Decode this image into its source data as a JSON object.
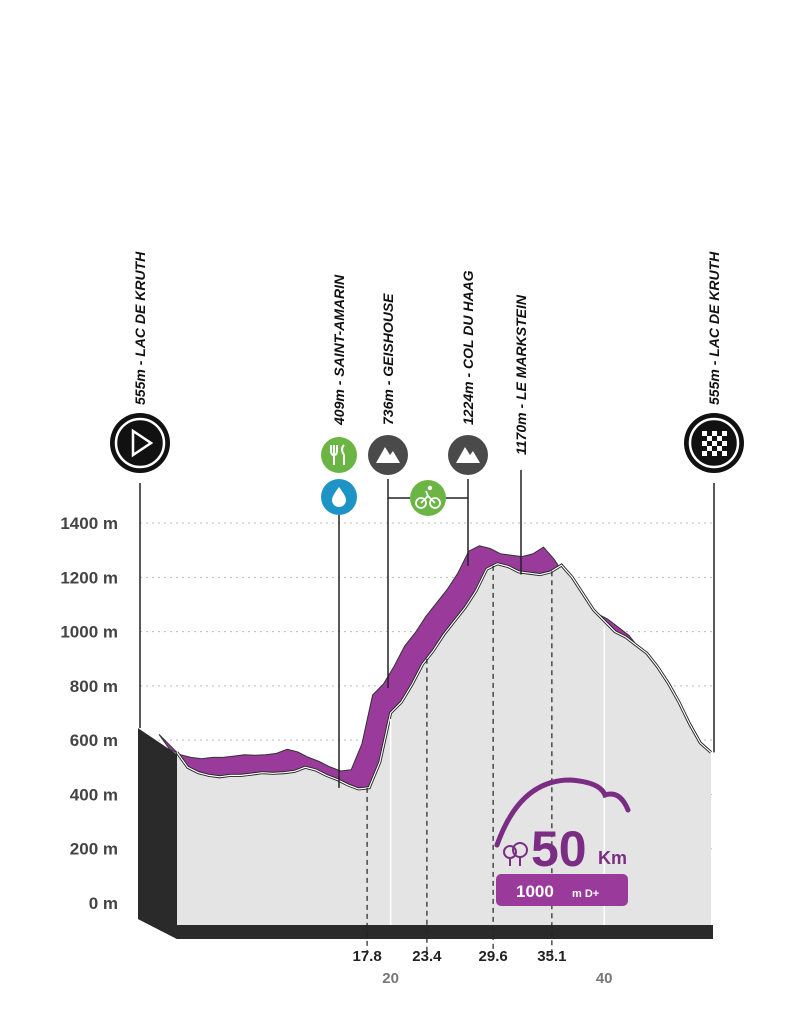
{
  "chart_data": {
    "type": "area",
    "y_unit_labels": [
      "0 m",
      "200 m",
      "400 m",
      "600 m",
      "800 m",
      "1000 m",
      "1200 m",
      "1400 m"
    ],
    "y_ticks": [
      0,
      200,
      400,
      600,
      800,
      1000,
      1200,
      1400
    ],
    "ylim": [
      0,
      1400
    ],
    "xlim": [
      0,
      50
    ],
    "x_ticks": [
      {
        "value": 20,
        "label": "20"
      },
      {
        "value": 40,
        "label": "40"
      }
    ],
    "x_markers": [
      {
        "value": 17.8,
        "label": "17.8"
      },
      {
        "value": 23.4,
        "label": "23.4"
      },
      {
        "value": 29.6,
        "label": "29.6"
      },
      {
        "value": 35.1,
        "label": "35.1"
      }
    ],
    "grid": true,
    "series": [
      {
        "x": [
          0,
          1,
          2,
          3,
          4,
          5,
          6,
          7,
          8,
          9,
          10,
          11,
          12,
          13,
          14,
          15,
          16,
          17,
          18,
          19,
          20,
          21,
          22,
          23,
          24,
          25,
          26,
          27,
          28,
          29,
          30,
          31,
          32,
          33,
          34,
          35,
          36,
          37,
          38,
          39,
          40,
          41,
          42,
          43,
          44,
          45,
          46,
          47,
          48,
          49,
          50
        ],
        "values": [
          555,
          500,
          480,
          470,
          465,
          470,
          470,
          475,
          480,
          478,
          480,
          485,
          500,
          490,
          470,
          455,
          435,
          420,
          425,
          520,
          700,
          740,
          805,
          880,
          930,
          990,
          1040,
          1090,
          1150,
          1230,
          1250,
          1240,
          1220,
          1215,
          1210,
          1220,
          1245,
          1200,
          1140,
          1080,
          1040,
          1000,
          980,
          950,
          920,
          870,
          810,
          740,
          660,
          590,
          555
        ]
      }
    ],
    "gradient_bands": [
      {
        "from": 0,
        "to": 17.8,
        "color": "#9a3b9c"
      },
      {
        "from": 17.8,
        "to": 29.6,
        "color": "#9a3b9c"
      },
      {
        "from": 29.6,
        "to": 35.1,
        "color": "#9a3b9c"
      },
      {
        "from": 35.1,
        "to": 50,
        "color": "#9a3b9c"
      }
    ]
  },
  "waypoints": [
    {
      "km": 0,
      "label": "555m - LAC DE KRUTH",
      "icon": "start-play-icon"
    },
    {
      "km": 17.8,
      "label": "409m - SAINT-AMARIN",
      "icon": "food-icon",
      "icon2": "water-drop-icon"
    },
    {
      "km": 21.8,
      "label": "736m - GEISHOUSE",
      "icon": "mountain-icon"
    },
    {
      "km": 29.6,
      "label": "1224m - COL DU HAAG",
      "icon": "mountain-icon"
    },
    {
      "km": 33.9,
      "label": "1170m - LE MARKSTEIN",
      "icon": null
    },
    {
      "km": 50,
      "label": "555m - LAC DE KRUTH",
      "icon": "finish-checkered-icon"
    }
  ],
  "bike_segment": {
    "from_km": 21.8,
    "to_km": 29.6,
    "icon": "bicycle-icon"
  },
  "badge": {
    "distance": "50",
    "unit": "Km",
    "elevation_gain": "1000",
    "elevation_unit": "m D+",
    "icon": "trees-icon"
  },
  "colors": {
    "purple": "#9a3b9c",
    "purple_dark": "#7b2d83",
    "ground": "#e4e4e4",
    "base": "#2a2a2a",
    "green_icon": "#6bb545",
    "blue_icon": "#1e93c6",
    "mountain_icon": "#4a4a4a"
  }
}
